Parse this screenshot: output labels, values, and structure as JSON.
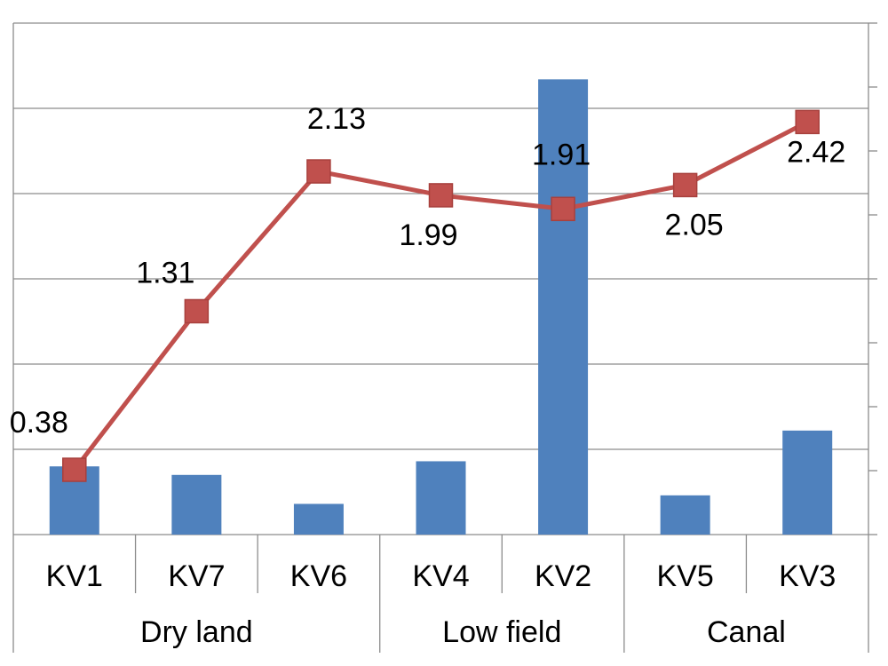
{
  "chart_data": {
    "type": "bar",
    "categories": [
      "KV1",
      "KV7",
      "KV6",
      "KV4",
      "KV2",
      "KV5",
      "KV3"
    ],
    "groups": [
      {
        "label": "Dry land",
        "categories": [
          "KV1",
          "KV7",
          "KV6"
        ]
      },
      {
        "label": "Low field",
        "categories": [
          "KV4",
          "KV2"
        ]
      },
      {
        "label": "Canal",
        "categories": [
          "KV5",
          "KV3"
        ]
      }
    ],
    "series": [
      {
        "type": "bar",
        "axis": "left",
        "color": "#4f81bd",
        "values": [
          0.4,
          0.35,
          0.18,
          0.43,
          2.67,
          0.23,
          0.61
        ]
      },
      {
        "type": "line",
        "axis": "right",
        "color": "#c0504d",
        "marker": "square",
        "values": [
          0.38,
          1.31,
          2.13,
          1.99,
          1.91,
          2.05,
          2.42
        ],
        "labels": [
          "0.38",
          "1.31",
          "2.13",
          "1.99",
          "1.91",
          "2.05",
          "2.42"
        ]
      }
    ],
    "ylim": [
      0,
      3
    ],
    "y2lim": [
      0,
      3
    ],
    "grid": true,
    "tick_labels_visible": false
  }
}
